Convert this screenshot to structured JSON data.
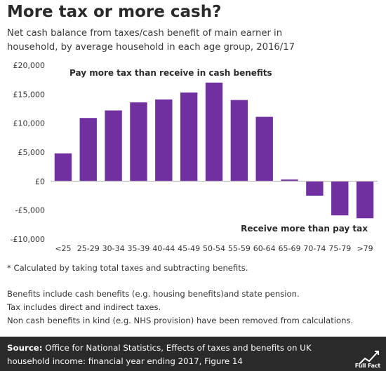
{
  "title": "More tax or more cash?",
  "subtitle": "Net cash balance from taxes/cash benefit of main earner in household, by average household in each age group, 2016/17",
  "chart_data": {
    "type": "bar",
    "categories": [
      "<25",
      "25-29",
      "30-34",
      "35-39",
      "40-44",
      "45-49",
      "50-54",
      "55-59",
      "60-64",
      "65-69",
      "70-74",
      "75-79",
      ">79"
    ],
    "values": [
      4800,
      10900,
      12200,
      13600,
      14100,
      15300,
      17000,
      14000,
      11100,
      300,
      -2500,
      -5900,
      -6400
    ],
    "ylim": [
      -10000,
      20000
    ],
    "yticks": [
      20000,
      15000,
      10000,
      5000,
      0,
      -5000,
      -10000
    ],
    "ytick_labels": [
      "£20,000",
      "£15,000",
      "£10,000",
      "£5,000",
      "£0",
      "-£5,000",
      "-£10,000"
    ],
    "annotations": {
      "positive": "Pay more tax than receive in cash benefits",
      "negative": "Receive more than pay tax"
    },
    "bar_color": "#7030a0",
    "grid": false
  },
  "notes": {
    "footnote": "* Calculated by taking total taxes and subtracting benefits.",
    "line1": "Benefits include cash benefits (e.g. housing benefits)and state pension.",
    "line2": "Tax includes direct and indirect taxes.",
    "line3": "Non cash benefits in kind (e.g. NHS provision) have been removed from calculations."
  },
  "footer": {
    "source_label": "Source:",
    "source_text": "Office for National Statistics, Effects of taxes and benefits on UK household income: financial year ending 2017, Figure 14",
    "brand": "Full Fact",
    "background": "#2a2a2a"
  }
}
